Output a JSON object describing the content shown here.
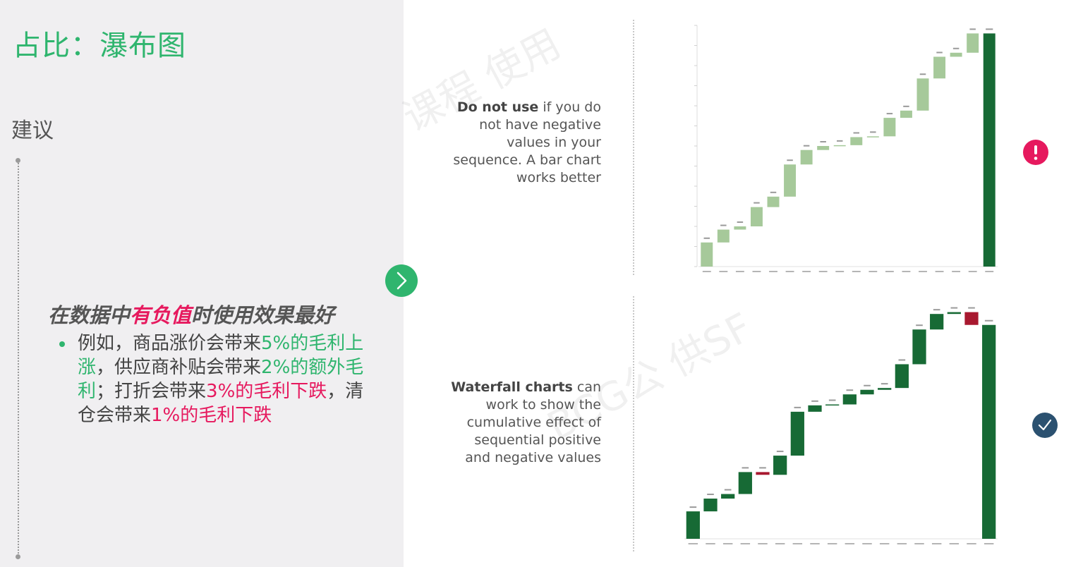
{
  "title": "占比：瀑布图",
  "section_label": "建议",
  "headline": {
    "before": "在数据中",
    "highlight": "有负值",
    "after": "时使用效果最好"
  },
  "bullet": [
    {
      "text": "例如，商品涨价会带来",
      "color": "normal"
    },
    {
      "text": "5%的毛利上涨",
      "color": "green"
    },
    {
      "text": "，供应商补贴会带来",
      "color": "normal"
    },
    {
      "text": "2%的额外毛利",
      "color": "green"
    },
    {
      "text": "；打折会带来",
      "color": "normal"
    },
    {
      "text": "3%的毛利下跌",
      "color": "red"
    },
    {
      "text": "，清仓会带来",
      "color": "normal"
    },
    {
      "text": "1%的毛利下跌",
      "color": "red"
    }
  ],
  "notes": {
    "top": {
      "bold": "Do not use",
      "rest": " if you do not have negative values in your sequence. A bar chart works better"
    },
    "bottom": {
      "bold": "Waterfall charts",
      "rest": " can work to show the cumulative effect of sequential positive and negative values"
    }
  },
  "watermark": {
    "top": "课程 使用",
    "bottom": "BCG公 供SF"
  },
  "colors": {
    "green": "#2fb56e",
    "pink": "#e6195e",
    "bar_light": "#a6c99a",
    "bar_dark": "#176a35",
    "bar_red": "#a8182f",
    "badge_warning": "#e6195e",
    "badge_check": "#2b5170"
  },
  "icons": {
    "next": "chevron-right-icon",
    "warning": "exclamation-icon",
    "check": "checkmark-icon"
  },
  "chart_data": [
    {
      "type": "bar",
      "variant": "waterfall",
      "note": "all increments positive; axis, tick and bar labels unreadable",
      "increments": [
        3,
        1.6,
        0.4,
        2.4,
        1.3,
        4,
        1.8,
        0.5,
        0.1,
        1,
        0.1,
        2.3,
        0.9,
        4,
        2.7,
        0.5,
        2.4
      ],
      "total": 29.0,
      "ylim": [
        0,
        30
      ]
    },
    {
      "type": "bar",
      "variant": "waterfall",
      "note": "mixed positive and negative increments; axis, tick and bar labels unreadable",
      "increments": [
        3,
        1.4,
        0.5,
        2.4,
        -0.3,
        2.1,
        4.8,
        0.7,
        0.1,
        1.1,
        0.5,
        0.2,
        2.6,
        3.8,
        1.7,
        0.2,
        -1.4
      ],
      "total": 23.4,
      "ylim": [
        0,
        25
      ]
    }
  ]
}
